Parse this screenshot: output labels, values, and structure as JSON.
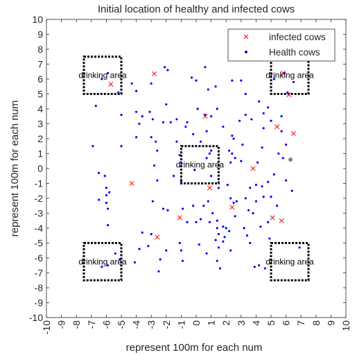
{
  "chart_data": {
    "type": "scatter",
    "title": "Initial location of healthy and infected cows",
    "xlabel": "represent 100m for each num",
    "ylabel": "represent 100m for each num",
    "xlim": [
      -10,
      10
    ],
    "ylim": [
      -10,
      10
    ],
    "xticks": [
      -10,
      -9,
      -8,
      -7,
      -6,
      -5,
      -4,
      -3,
      -2,
      -1,
      0,
      1,
      2,
      3,
      4,
      5,
      6,
      7,
      8,
      9,
      10
    ],
    "yticks": [
      -10,
      -9,
      -8,
      -7,
      -6,
      -5,
      -4,
      -3,
      -2,
      -1,
      0,
      1,
      2,
      3,
      4,
      5,
      6,
      7,
      8,
      9,
      10
    ],
    "grid": false,
    "legend_position": "top-right",
    "series": [
      {
        "name": "infected cows",
        "marker": "x",
        "color": "#ff0000",
        "points": [
          [
            -5.7,
            5.65
          ],
          [
            -2.8,
            6.35
          ],
          [
            0.6,
            3.5
          ],
          [
            6.5,
            2.35
          ],
          [
            5.4,
            2.8
          ],
          [
            5.8,
            6.4
          ],
          [
            6.2,
            4.95
          ],
          [
            3.8,
            0.0
          ],
          [
            -4.3,
            -1.0
          ],
          [
            0.9,
            -1.3
          ],
          [
            -1.1,
            -3.3
          ],
          [
            2.4,
            -2.6
          ],
          [
            -2.6,
            -4.6
          ],
          [
            5.1,
            -3.3
          ],
          [
            5.7,
            -3.5
          ]
        ]
      },
      {
        "name": "Health cows",
        "marker": "dot",
        "color": "#0000ff",
        "points": [
          [
            -6.3,
            6.0
          ],
          [
            -5.9,
            6.4
          ],
          [
            -5.2,
            5.1
          ],
          [
            -4.3,
            5.7
          ],
          [
            -4.0,
            5.2
          ],
          [
            -3.0,
            5.7
          ],
          [
            -2.1,
            6.8
          ],
          [
            -1.9,
            6.6
          ],
          [
            -0.3,
            6.1
          ],
          [
            0.0,
            5.9
          ],
          [
            0.6,
            6.8
          ],
          [
            0.8,
            5.3
          ],
          [
            1.3,
            5.5
          ],
          [
            2.4,
            5.9
          ],
          [
            3.0,
            5.9
          ],
          [
            3.3,
            5.0
          ],
          [
            4.2,
            4.5
          ],
          [
            5.2,
            6.0
          ],
          [
            5.9,
            6.4
          ],
          [
            6.1,
            5.1
          ],
          [
            6.5,
            5.8
          ],
          [
            -6.7,
            4.2
          ],
          [
            -5.0,
            3.6
          ],
          [
            -4.0,
            3.8
          ],
          [
            -3.6,
            3.5
          ],
          [
            -3.1,
            3.8
          ],
          [
            -2.2,
            3.1
          ],
          [
            -2.0,
            4.3
          ],
          [
            -1.7,
            3.1
          ],
          [
            -1.3,
            3.3
          ],
          [
            -0.7,
            2.8
          ],
          [
            -0.6,
            3.1
          ],
          [
            0.1,
            4.0
          ],
          [
            0.6,
            3.6
          ],
          [
            1.0,
            3.5
          ],
          [
            1.4,
            4.0
          ],
          [
            2.9,
            3.2
          ],
          [
            3.3,
            3.6
          ],
          [
            3.7,
            3.3
          ],
          [
            4.5,
            3.7
          ],
          [
            4.5,
            2.7
          ],
          [
            4.8,
            4.1
          ],
          [
            5.0,
            3.2
          ],
          [
            5.7,
            3.5
          ],
          [
            -3.8,
            3.0
          ],
          [
            -4.0,
            2.1
          ],
          [
            -3.0,
            2.1
          ],
          [
            -2.7,
            1.8
          ],
          [
            -2.9,
            3.3
          ],
          [
            -1.3,
            1.8
          ],
          [
            -0.2,
            2.3
          ],
          [
            0.3,
            1.8
          ],
          [
            0.7,
            2.5
          ],
          [
            1.8,
            2.8
          ],
          [
            2.5,
            2.0
          ],
          [
            2.4,
            2.2
          ],
          [
            4.4,
            1.4
          ],
          [
            5.7,
            2.5
          ],
          [
            6.0,
            1.6
          ],
          [
            -5.0,
            1.5
          ],
          [
            -6.9,
            1.5
          ],
          [
            -2.8,
            0.2
          ],
          [
            -2.6,
            1.2
          ],
          [
            -1.1,
            0.9
          ],
          [
            -1.0,
            0.4
          ],
          [
            0.7,
            0.7
          ],
          [
            0.9,
            1.0
          ],
          [
            1.0,
            1.2
          ],
          [
            2.2,
            1.2
          ],
          [
            2.4,
            1.0
          ],
          [
            2.6,
            0.7
          ],
          [
            2.3,
            0.4
          ],
          [
            3.0,
            0.5
          ],
          [
            3.1,
            1.6
          ],
          [
            4.1,
            0.4
          ],
          [
            5.5,
            1.0
          ],
          [
            5.8,
            0.7
          ],
          [
            -0.1,
            -0.1
          ],
          [
            -6.5,
            -0.3
          ],
          [
            -6.1,
            -0.5
          ],
          [
            -6.0,
            -1.3
          ],
          [
            -5.8,
            -1.6
          ],
          [
            -6.0,
            -1.8
          ],
          [
            -6.0,
            -2.3
          ],
          [
            -6.5,
            -2.1
          ],
          [
            -2.6,
            -0.8
          ],
          [
            -1.5,
            -0.5
          ],
          [
            -1.0,
            -0.9
          ],
          [
            1.0,
            -0.5
          ],
          [
            1.5,
            -1.3
          ],
          [
            2.1,
            -1.1
          ],
          [
            3.6,
            -1.3
          ],
          [
            4.0,
            -1.1
          ],
          [
            4.4,
            -1.2
          ],
          [
            4.8,
            -0.9
          ],
          [
            5.2,
            -0.4
          ],
          [
            6.0,
            -0.8
          ],
          [
            6.4,
            -1.5
          ],
          [
            -5.9,
            -2.7
          ],
          [
            -5.9,
            -3.8
          ],
          [
            -2.9,
            -2.2
          ],
          [
            -2.2,
            -2.7
          ],
          [
            -1.9,
            -2.8
          ],
          [
            -0.9,
            -2.7
          ],
          [
            -0.2,
            -2.5
          ],
          [
            0.5,
            -2.5
          ],
          [
            0.8,
            -2.2
          ],
          [
            1.1,
            -3.0
          ],
          [
            1.4,
            -3.5
          ],
          [
            2.3,
            -2.0
          ],
          [
            2.5,
            -2.3
          ],
          [
            2.7,
            -2.2
          ],
          [
            3.3,
            -2.0
          ],
          [
            3.5,
            -2.8
          ],
          [
            3.8,
            -3.0
          ],
          [
            4.0,
            -2.2
          ],
          [
            4.5,
            -1.9
          ],
          [
            5.0,
            -1.9
          ],
          [
            5.4,
            -2.5
          ],
          [
            -3.6,
            -4.3
          ],
          [
            -3.0,
            -4.4
          ],
          [
            -0.6,
            -3.6
          ],
          [
            0.0,
            -3.6
          ],
          [
            0.3,
            -3.4
          ],
          [
            0.9,
            -3.6
          ],
          [
            1.4,
            -4.0
          ],
          [
            1.5,
            -4.4
          ],
          [
            1.8,
            -3.9
          ],
          [
            2.0,
            -4.0
          ],
          [
            2.2,
            -4.2
          ],
          [
            2.6,
            -3.2
          ],
          [
            3.2,
            -4.0
          ],
          [
            3.4,
            -4.5
          ],
          [
            4.3,
            -3.9
          ],
          [
            4.8,
            -3.6
          ],
          [
            -5.4,
            -5.7
          ],
          [
            -5.1,
            -6.1
          ],
          [
            -4.1,
            -6.3
          ],
          [
            -3.2,
            -5.2
          ],
          [
            -3.8,
            -5.4
          ],
          [
            -2.4,
            -6.1
          ],
          [
            -2.5,
            -6.9
          ],
          [
            -2.0,
            -5.5
          ],
          [
            -1.1,
            -5.0
          ],
          [
            -1.0,
            -5.5
          ],
          [
            0.2,
            -5.1
          ],
          [
            0.7,
            -5.7
          ],
          [
            1.4,
            -6.2
          ],
          [
            1.5,
            -5.3
          ],
          [
            1.8,
            -4.9
          ],
          [
            1.3,
            -4.8
          ],
          [
            1.6,
            -6.7
          ],
          [
            1.9,
            -4.6
          ],
          [
            2.3,
            -5.5
          ],
          [
            3.6,
            -5.0
          ],
          [
            4.9,
            -4.7
          ],
          [
            3.9,
            -6.6
          ],
          [
            4.2,
            -6.5
          ],
          [
            4.6,
            -6.7
          ],
          [
            6.9,
            -5.3
          ],
          [
            -0.9,
            -6.2
          ],
          [
            -5.9,
            -6.5
          ],
          [
            -6.3,
            -6.6
          ]
        ]
      },
      {
        "name": "",
        "marker": "dot-large",
        "color": "#7a8a5a",
        "points": [
          [
            6.3,
            0.6
          ]
        ]
      }
    ],
    "drinking_areas": {
      "label": "drinking area",
      "squares": [
        [
          -7.5,
          -5,
          5,
          7.5
        ],
        [
          5,
          7.5,
          5,
          7.5
        ],
        [
          -1,
          1.5,
          -1,
          1.5
        ],
        [
          -7.5,
          -5,
          -7.5,
          -5
        ],
        [
          5,
          7.5,
          -7.5,
          -5
        ]
      ]
    }
  }
}
